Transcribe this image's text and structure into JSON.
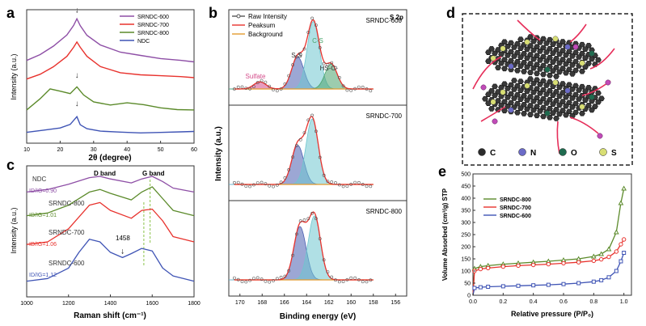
{
  "figure": {
    "panel_labels": [
      "a",
      "b",
      "c",
      "d",
      "e"
    ]
  },
  "colors": {
    "c600": "#8e4fa6",
    "c700": "#e8322d",
    "c800": "#5b8a2a",
    "cNDC": "#3f54b5",
    "raw": "#555555",
    "peak": "#e8322d",
    "bg": "#e39b2f",
    "fitBlue": "#4b5fb0",
    "fitTeal": "#6fc6cf",
    "fitGreen": "#4aa36b",
    "fitPink": "#d44b8a"
  },
  "chart_data": [
    {
      "id": "a",
      "type": "line",
      "title": "",
      "xlabel": "2θ (degree)",
      "ylabel": "Intensity (a.u.)",
      "xlim": [
        10,
        60
      ],
      "xticks": [
        10,
        20,
        30,
        40,
        50,
        60
      ],
      "legend": [
        "SRNDC-600",
        "SRNDC-700",
        "SRNDC-800",
        "NDC"
      ],
      "legend_position": "top-right",
      "series": [
        {
          "name": "SRNDC-600",
          "x": [
            10,
            14,
            18,
            22,
            24,
            25,
            26,
            28,
            32,
            38,
            44,
            50,
            56,
            60
          ],
          "y": [
            0.62,
            0.66,
            0.72,
            0.8,
            0.87,
            0.92,
            0.87,
            0.8,
            0.73,
            0.68,
            0.66,
            0.64,
            0.63,
            0.62
          ]
        },
        {
          "name": "SRNDC-700",
          "x": [
            10,
            14,
            18,
            22,
            24,
            25,
            26,
            28,
            32,
            38,
            44,
            50,
            56,
            60
          ],
          "y": [
            0.48,
            0.52,
            0.58,
            0.66,
            0.73,
            0.77,
            0.73,
            0.66,
            0.58,
            0.53,
            0.51,
            0.5,
            0.49,
            0.48
          ]
        },
        {
          "name": "SRNDC-800",
          "x": [
            10,
            14,
            17,
            20,
            23,
            25,
            27,
            30,
            35,
            40,
            45,
            50,
            55,
            60
          ],
          "y": [
            0.25,
            0.33,
            0.4,
            0.38,
            0.36,
            0.41,
            0.35,
            0.3,
            0.28,
            0.3,
            0.29,
            0.27,
            0.26,
            0.26
          ]
        },
        {
          "name": "NDC",
          "x": [
            10,
            15,
            20,
            23,
            25,
            26,
            28,
            32,
            38,
            44,
            50,
            56,
            60
          ],
          "y": [
            0.08,
            0.1,
            0.12,
            0.15,
            0.21,
            0.15,
            0.12,
            0.1,
            0.09,
            0.08,
            0.08,
            0.08,
            0.08
          ]
        }
      ],
      "annotations": [
        "↓ at 2θ ≈ 25°"
      ]
    },
    {
      "id": "b",
      "type": "line",
      "title": "S 2p",
      "xlabel": "Binding energy (eV)",
      "ylabel": "Intensity (a.u.)",
      "xlim": [
        171,
        155
      ],
      "xticks": [
        170,
        168,
        166,
        164,
        162,
        160,
        158,
        156
      ],
      "legend": [
        "Raw Intensity",
        "Peaksum",
        "Background"
      ],
      "legend_position": "top-left",
      "subplots": [
        {
          "name": "SRNDC-600",
          "peaks": [
            {
              "label": "Sulfate",
              "center": 168.2,
              "height": 0.1
            },
            {
              "label": "S-S",
              "center": 164.8,
              "height": 0.45
            },
            {
              "label": "C-S",
              "center": 163.4,
              "height": 0.95
            },
            {
              "label": "HS-C-",
              "center": 161.8,
              "height": 0.35
            }
          ]
        },
        {
          "name": "SRNDC-700",
          "peaks": [
            {
              "label": "S-S",
              "center": 164.8,
              "height": 0.55
            },
            {
              "label": "C-S",
              "center": 163.5,
              "height": 0.92
            }
          ]
        },
        {
          "name": "SRNDC-800",
          "peaks": [
            {
              "label": "S-S",
              "center": 164.6,
              "height": 0.75
            },
            {
              "label": "C-S",
              "center": 163.3,
              "height": 0.9
            }
          ]
        }
      ],
      "peak_labels": [
        "Sulfate",
        "S-S",
        "C-S",
        "HS-C-"
      ]
    },
    {
      "id": "c",
      "type": "line",
      "title": "",
      "xlabel": "Raman shift (cm⁻¹)",
      "ylabel": "Intensity (a.u.)",
      "xlim": [
        1000,
        1800
      ],
      "xticks": [
        1000,
        1200,
        1400,
        1600,
        1800
      ],
      "band_labels": [
        "D band",
        "G band"
      ],
      "annotation_1458": "1458",
      "series": [
        {
          "name": "NDC",
          "ratio": "ID/IG=0.90",
          "x": [
            1000,
            1100,
            1200,
            1300,
            1350,
            1400,
            1500,
            1550,
            1600,
            1650,
            1700,
            1800
          ],
          "y": [
            0.8,
            0.82,
            0.86,
            0.91,
            0.92,
            0.9,
            0.87,
            0.9,
            0.92,
            0.88,
            0.83,
            0.8
          ]
        },
        {
          "name": "SRNDC-800",
          "ratio": "ID/IG=1.01",
          "x": [
            1000,
            1100,
            1200,
            1300,
            1350,
            1400,
            1500,
            1550,
            1600,
            1650,
            1700,
            1800
          ],
          "y": [
            0.62,
            0.64,
            0.7,
            0.8,
            0.82,
            0.79,
            0.74,
            0.8,
            0.84,
            0.75,
            0.66,
            0.62
          ]
        },
        {
          "name": "SRNDC-700",
          "ratio": "ID/IG=1.06",
          "x": [
            1000,
            1100,
            1200,
            1300,
            1350,
            1400,
            1500,
            1550,
            1600,
            1650,
            1700,
            1800
          ],
          "y": [
            0.4,
            0.42,
            0.52,
            0.7,
            0.72,
            0.66,
            0.6,
            0.66,
            0.67,
            0.58,
            0.46,
            0.42
          ]
        },
        {
          "name": "SRNDC-600",
          "ratio": "ID/IG=1.12",
          "x": [
            1000,
            1100,
            1200,
            1250,
            1300,
            1350,
            1400,
            1458,
            1500,
            1550,
            1600,
            1650,
            1700,
            1800
          ],
          "y": [
            0.12,
            0.14,
            0.22,
            0.34,
            0.44,
            0.42,
            0.34,
            0.3,
            0.33,
            0.37,
            0.35,
            0.22,
            0.16,
            0.12
          ]
        }
      ]
    },
    {
      "id": "e",
      "type": "line",
      "title": "",
      "xlabel": "Relative pressure (P/P₀)",
      "ylabel": "Volume Absorbed (cm³/g) STP",
      "xlim": [
        0,
        1.05
      ],
      "ylim": [
        0,
        500
      ],
      "xticks": [
        0.0,
        0.2,
        0.4,
        0.6,
        0.8,
        1.0
      ],
      "yticks": [
        0,
        50,
        100,
        150,
        200,
        250,
        300,
        350,
        400,
        450,
        500
      ],
      "legend": [
        "SRNDC-800",
        "SRNDC-700",
        "SRNDC-600"
      ],
      "legend_position": "top-left",
      "series": [
        {
          "name": "SRNDC-800",
          "x": [
            0.0,
            0.01,
            0.05,
            0.1,
            0.2,
            0.3,
            0.4,
            0.5,
            0.6,
            0.7,
            0.8,
            0.85,
            0.9,
            0.95,
            0.98,
            1.0
          ],
          "y": [
            0,
            110,
            118,
            122,
            128,
            132,
            136,
            140,
            145,
            150,
            160,
            170,
            190,
            260,
            380,
            440
          ]
        },
        {
          "name": "SRNDC-700",
          "x": [
            0.0,
            0.01,
            0.05,
            0.1,
            0.2,
            0.3,
            0.4,
            0.5,
            0.6,
            0.7,
            0.8,
            0.85,
            0.9,
            0.95,
            0.98,
            1.0
          ],
          "y": [
            0,
            100,
            108,
            112,
            118,
            122,
            125,
            128,
            132,
            136,
            142,
            148,
            158,
            180,
            210,
            230
          ]
        },
        {
          "name": "SRNDC-600",
          "x": [
            0.0,
            0.01,
            0.05,
            0.1,
            0.2,
            0.3,
            0.4,
            0.5,
            0.6,
            0.7,
            0.8,
            0.85,
            0.9,
            0.95,
            0.98,
            1.0
          ],
          "y": [
            0,
            30,
            33,
            35,
            37,
            39,
            41,
            43,
            46,
            50,
            56,
            62,
            74,
            100,
            140,
            175
          ]
        }
      ]
    }
  ],
  "schematic": {
    "id": "d",
    "legend": [
      "C",
      "N",
      "O",
      "S"
    ],
    "legend_colors": [
      "#2b2b2b",
      "#6b6bc7",
      "#1f6b4f",
      "#d8de74"
    ]
  }
}
